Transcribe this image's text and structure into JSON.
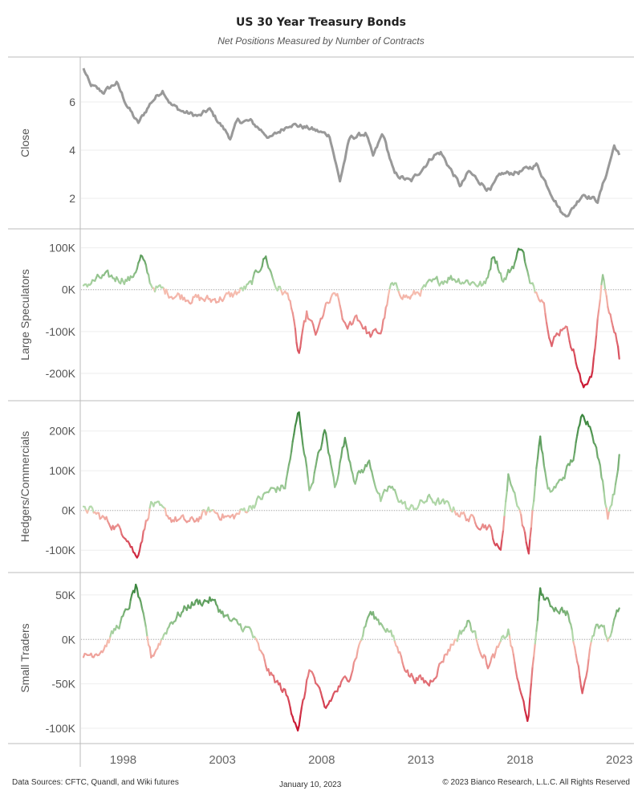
{
  "header": {
    "title": "US 30 Year Treasury Bonds",
    "subtitle": "Net Positions Measured by Number of Contracts"
  },
  "footer": {
    "sources": "Data Sources: CFTC, Quandl, and Wiki futures",
    "date": "January 10, 2023",
    "copyright": "© 2023 Bianco Research, L.L.C. All Rights Reserved"
  },
  "chart_data": {
    "type": "line",
    "x_axis": {
      "type": "date",
      "range": [
        "1996-01-01",
        "2023-06-30"
      ],
      "tick_labels": [
        "1998",
        "2003",
        "2008",
        "2013",
        "2018",
        "2023"
      ]
    },
    "colors": {
      "close": "#999999",
      "positive_strong": "#2e7d32",
      "positive_light": "#b9ddb0",
      "negative_light": "#f7c2b3",
      "negative_strong": "#c8102e",
      "panel_border": "#bbbbbb",
      "zero_line": "#aaaaaa"
    },
    "panels": [
      {
        "key": "close",
        "ylabel": "Close",
        "ylim": [
          1,
          7.6
        ],
        "yticks": [
          2,
          4,
          6
        ],
        "ytick_labels": [
          "2",
          "4",
          "6"
        ],
        "coloring": "solid",
        "grid": true,
        "series": [
          {
            "x": [
              "1996-01",
              "1996-05",
              "1997-01",
              "1997-09",
              "1998-03",
              "1998-10",
              "1999-06",
              "2000-01",
              "2000-06",
              "2001-01",
              "2001-11",
              "2002-05",
              "2003-06",
              "2003-10",
              "2004-06",
              "2005-06",
              "2006-06",
              "2007-06",
              "2008-06",
              "2008-12",
              "2009-06",
              "2010-04",
              "2010-08",
              "2011-02",
              "2011-09",
              "2012-07",
              "2013-09",
              "2014-01",
              "2015-01",
              "2015-06",
              "2016-07",
              "2017-01",
              "2018-01",
              "2018-11",
              "2019-08",
              "2020-03",
              "2020-07",
              "2021-03",
              "2021-12",
              "2022-06",
              "2022-10",
              "2023-01"
            ],
            "y": [
              7.4,
              6.7,
              6.4,
              6.8,
              5.9,
              5.1,
              6.0,
              6.5,
              5.9,
              5.6,
              5.4,
              5.7,
              4.5,
              5.2,
              5.2,
              4.5,
              5.1,
              4.9,
              4.6,
              2.7,
              4.5,
              4.7,
              3.7,
              4.7,
              3.0,
              2.7,
              3.8,
              3.9,
              2.5,
              3.1,
              2.3,
              3.0,
              3.1,
              3.4,
              2.2,
              1.3,
              1.4,
              2.2,
              1.9,
              3.2,
              4.2,
              3.8
            ]
          }
        ]
      },
      {
        "key": "large_speculators",
        "ylabel": "Large Speculators",
        "ylim": [
          -250000,
          130000
        ],
        "yticks": [
          100000,
          0,
          -100000,
          -200000
        ],
        "ytick_labels": [
          "100K",
          "0K",
          "-100K",
          "-200K"
        ],
        "coloring": "diverging",
        "color_extent": [
          -240000,
          120000
        ],
        "series": [
          {
            "x": [
              "1996-01",
              "1997-01",
              "1998-06",
              "1998-12",
              "1999-06",
              "2000-06",
              "2001-06",
              "2002-06",
              "2003-06",
              "2004-06",
              "2005-03",
              "2005-09",
              "2006-06",
              "2006-11",
              "2007-04",
              "2007-10",
              "2008-03",
              "2008-10",
              "2009-04",
              "2009-10",
              "2010-06",
              "2011-01",
              "2011-07",
              "2012-06",
              "2013-06",
              "2014-06",
              "2015-06",
              "2016-04",
              "2016-09",
              "2017-03",
              "2017-09",
              "2018-02",
              "2018-07",
              "2019-03",
              "2019-08",
              "2020-04",
              "2020-09",
              "2021-03",
              "2021-09",
              "2022-03",
              "2022-07",
              "2022-11",
              "2023-01"
            ],
            "y": [
              10000,
              30000,
              25000,
              80000,
              10000,
              -10000,
              -20000,
              -25000,
              -15000,
              10000,
              80000,
              10000,
              -20000,
              -160000,
              -60000,
              -110000,
              -45000,
              -10000,
              -100000,
              -60000,
              -110000,
              -100000,
              10000,
              -20000,
              10000,
              30000,
              20000,
              10000,
              90000,
              20000,
              60000,
              110000,
              10000,
              -20000,
              -130000,
              -80000,
              -140000,
              -240000,
              -190000,
              40000,
              -60000,
              -100000,
              -165000
            ]
          }
        ]
      },
      {
        "key": "hedgers_commercials",
        "ylabel": "Hedgers/Commercials",
        "ylim": [
          -140000,
          260000
        ],
        "yticks": [
          200000,
          100000,
          0,
          -100000
        ],
        "ytick_labels": [
          "200K",
          "100K",
          "0K",
          "-100K"
        ],
        "coloring": "diverging",
        "color_extent": [
          -130000,
          260000
        ],
        "series": [
          {
            "x": [
              "1996-01",
              "1997-01",
              "1998-03",
              "1998-09",
              "1999-06",
              "2000-06",
              "2001-06",
              "2002-06",
              "2003-06",
              "2004-06",
              "2005-06",
              "2006-03",
              "2006-11",
              "2007-06",
              "2008-03",
              "2008-09",
              "2009-03",
              "2009-09",
              "2010-06",
              "2011-01",
              "2011-06",
              "2012-06",
              "2013-06",
              "2014-06",
              "2015-06",
              "2016-06",
              "2017-01",
              "2017-06",
              "2018-01",
              "2018-06",
              "2019-01",
              "2019-06",
              "2020-01",
              "2020-09",
              "2021-03",
              "2021-09",
              "2022-03",
              "2022-06",
              "2022-10",
              "2023-01"
            ],
            "y": [
              10000,
              -20000,
              -60000,
              -120000,
              20000,
              -20000,
              -30000,
              0,
              -20000,
              10000,
              50000,
              60000,
              250000,
              50000,
              200000,
              60000,
              180000,
              80000,
              120000,
              20000,
              60000,
              0,
              30000,
              10000,
              -20000,
              -40000,
              -110000,
              90000,
              0,
              -110000,
              190000,
              40000,
              70000,
              130000,
              250000,
              200000,
              70000,
              -10000,
              50000,
              140000
            ]
          }
        ]
      },
      {
        "key": "small_traders",
        "ylabel": "Small Traders",
        "ylim": [
          -110000,
          68000
        ],
        "yticks": [
          50000,
          0,
          -50000,
          -100000
        ],
        "ytick_labels": [
          "50K",
          "0K",
          "-50K",
          "-100K"
        ],
        "coloring": "diverging",
        "color_extent": [
          -100000,
          65000
        ],
        "series": [
          {
            "x": [
              "1996-01",
              "1997-01",
              "1998-03",
              "1998-09",
              "1999-06",
              "2000-06",
              "2001-06",
              "2002-06",
              "2003-06",
              "2004-06",
              "2005-06",
              "2006-03",
              "2006-11",
              "2007-06",
              "2008-03",
              "2008-09",
              "2009-06",
              "2010-06",
              "2011-06",
              "2012-06",
              "2013-06",
              "2014-06",
              "2015-06",
              "2016-06",
              "2017-06",
              "2018-01",
              "2018-06",
              "2019-01",
              "2019-06",
              "2020-06",
              "2021-03",
              "2021-09",
              "2022-03",
              "2022-06",
              "2022-10",
              "2023-01"
            ],
            "y": [
              -20000,
              -10000,
              30000,
              60000,
              -20000,
              20000,
              40000,
              45000,
              20000,
              10000,
              -40000,
              -60000,
              -100000,
              -30000,
              -80000,
              -60000,
              -40000,
              30000,
              10000,
              -40000,
              -50000,
              -10000,
              20000,
              -30000,
              10000,
              -60000,
              -90000,
              55000,
              40000,
              30000,
              -60000,
              10000,
              20000,
              0,
              20000,
              35000
            ]
          }
        ]
      }
    ]
  }
}
